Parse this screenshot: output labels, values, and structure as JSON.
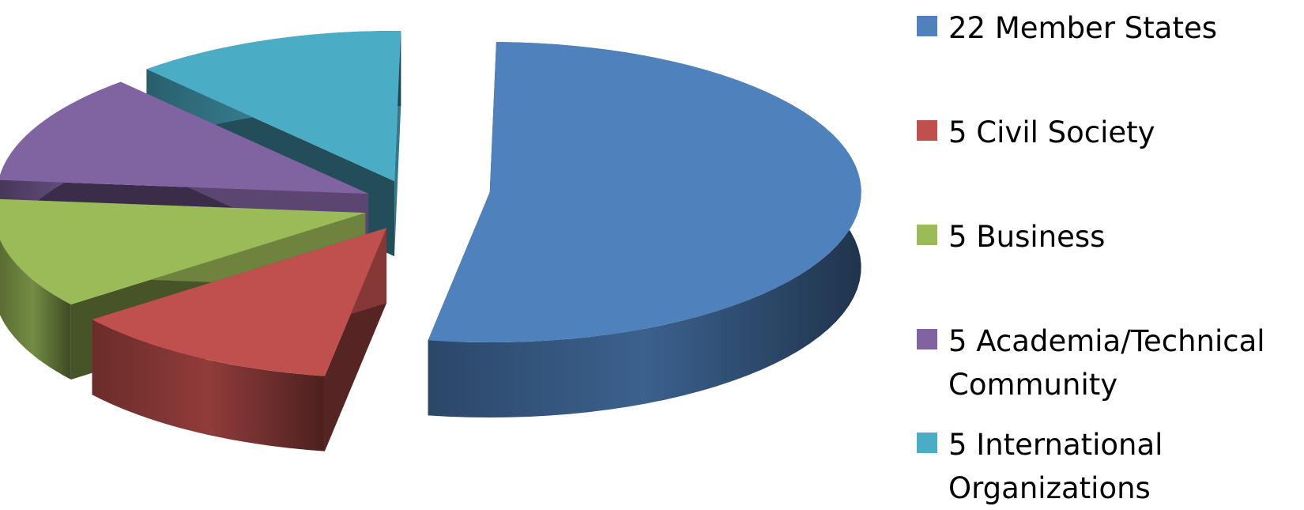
{
  "chart_data": {
    "type": "pie",
    "style": "3d-exploded",
    "title": "",
    "legend_position": "right",
    "slices": [
      {
        "label": "22 Member States",
        "value": 22,
        "color": "#4F81BD"
      },
      {
        "label": "5 Civil Society",
        "value": 5,
        "color": "#C0504D"
      },
      {
        "label": "5 Business",
        "value": 5,
        "color": "#9BBB59"
      },
      {
        "label": "5 Academia/Technical Community",
        "value": 5,
        "color": "#8064A2"
      },
      {
        "label": "5 International Organizations",
        "value": 5,
        "color": "#4BACC6"
      }
    ]
  }
}
